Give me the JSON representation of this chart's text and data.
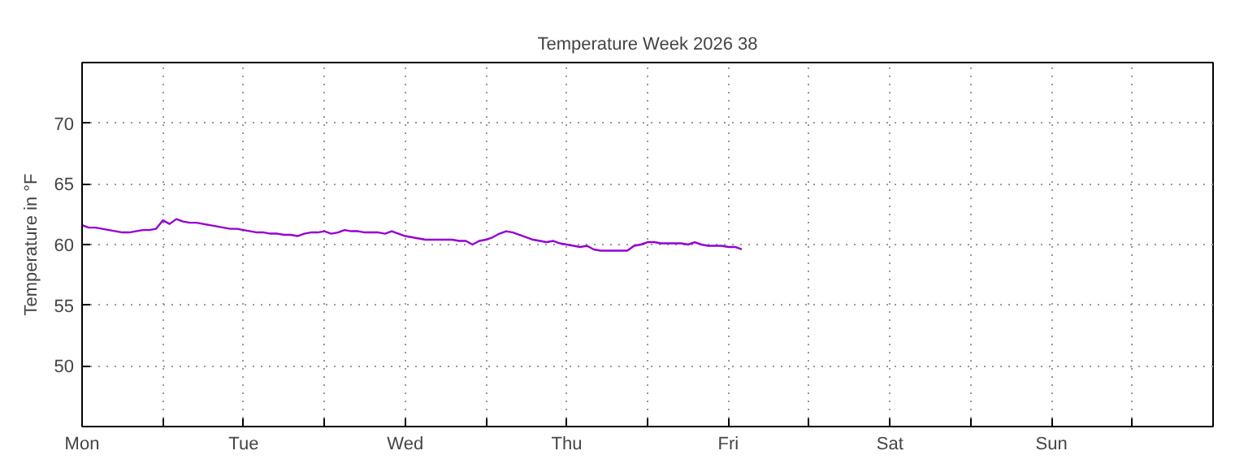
{
  "chart_data": {
    "type": "line",
    "title": "Temperature Week 2026 38",
    "ylabel": "Temperature in °F",
    "categories": [
      "Mon",
      null,
      null,
      null,
      null,
      null,
      null,
      null,
      null,
      null,
      null,
      null,
      null,
      null,
      null,
      null,
      null,
      null,
      null,
      null,
      null,
      null,
      null,
      null,
      "Tue",
      null,
      null,
      null,
      null,
      null,
      null,
      null,
      null,
      null,
      null,
      null,
      null,
      null,
      null,
      null,
      null,
      null,
      null,
      null,
      null,
      null,
      null,
      null,
      "Wed",
      null,
      null,
      null,
      null,
      null,
      null,
      null,
      null,
      null,
      null,
      null,
      null,
      null,
      null,
      null,
      null,
      null,
      null,
      null,
      null,
      null,
      null,
      null,
      "Thu",
      null,
      null,
      null,
      null,
      null,
      null,
      null,
      null,
      null,
      null,
      null,
      null,
      null,
      null,
      null,
      null,
      null,
      null,
      null,
      null,
      null,
      null,
      null,
      "Fri",
      null,
      null,
      null,
      null,
      null,
      null,
      null,
      null,
      null,
      null,
      null,
      null,
      null,
      null,
      null,
      null,
      null,
      null,
      null,
      null,
      null,
      null,
      null,
      "Sat",
      null,
      null,
      null,
      null,
      null,
      null,
      null,
      null,
      null,
      null,
      null,
      null,
      null,
      null,
      null,
      null,
      null,
      null,
      null,
      null,
      null,
      null,
      null,
      "Sun",
      null,
      null,
      null,
      null,
      null,
      null,
      null,
      null,
      null,
      null,
      null,
      null,
      null,
      null,
      null,
      null,
      null,
      null,
      null,
      null,
      null,
      null,
      null
    ],
    "ylim": [
      45,
      75
    ],
    "yticks": [
      50,
      55,
      60,
      65,
      70
    ],
    "grid": true,
    "line_style": "solid",
    "marker": "none",
    "series": [
      {
        "color": "#9400d3",
        "values": [
          61.6,
          61.4,
          61.4,
          61.3,
          61.2,
          61.1,
          61.0,
          61.0,
          61.1,
          61.2,
          61.2,
          61.3,
          62.0,
          61.7,
          62.1,
          61.9,
          61.8,
          61.8,
          61.7,
          61.6,
          61.5,
          61.4,
          61.3,
          61.3,
          61.2,
          61.1,
          61.0,
          61.0,
          60.9,
          60.9,
          60.8,
          60.8,
          60.7,
          60.9,
          61.0,
          61.0,
          61.1,
          60.9,
          61.0,
          61.2,
          61.1,
          61.1,
          61.0,
          61.0,
          61.0,
          60.9,
          61.1,
          60.9,
          60.7,
          60.6,
          60.5,
          60.4,
          60.4,
          60.4,
          60.4,
          60.4,
          60.3,
          60.3,
          60.0,
          60.3,
          60.4,
          60.6,
          60.9,
          61.1,
          61.0,
          60.8,
          60.6,
          60.4,
          60.3,
          60.2,
          60.3,
          60.1,
          60.0,
          59.9,
          59.8,
          59.9,
          59.6,
          59.5,
          59.5,
          59.5,
          59.5,
          59.5,
          59.9,
          60.0,
          60.2,
          60.2,
          60.1,
          60.1,
          60.1,
          60.1,
          60.0,
          60.2,
          60.0,
          59.9,
          59.9,
          59.9,
          59.8,
          59.8,
          59.6,
          null,
          null,
          null,
          null,
          null,
          null,
          null,
          null,
          null,
          null,
          null,
          null,
          null,
          null,
          null,
          null,
          null,
          null,
          null,
          null,
          null,
          null,
          null,
          null,
          null,
          null,
          null,
          null,
          null,
          null,
          null,
          null,
          null,
          null,
          null,
          null,
          null,
          null,
          null,
          null,
          null,
          null,
          null,
          null,
          null,
          null,
          null,
          null,
          null,
          null,
          null,
          null,
          null,
          null,
          null,
          null,
          null,
          null,
          null,
          null,
          null,
          null,
          null,
          null,
          null,
          null,
          null,
          null,
          null
        ]
      }
    ]
  }
}
